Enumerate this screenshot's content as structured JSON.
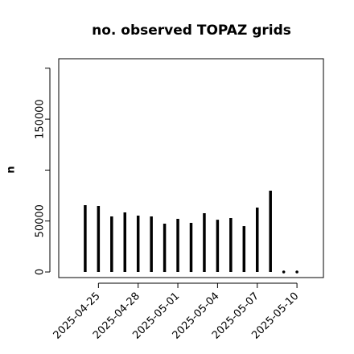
{
  "chart_data": {
    "type": "spike",
    "title": "no. observed TOPAZ grids",
    "ylabel": "n",
    "x": [
      "2025-04-24",
      "2025-04-25",
      "2025-04-26",
      "2025-04-27",
      "2025-04-28",
      "2025-04-29",
      "2025-04-30",
      "2025-05-01",
      "2025-05-02",
      "2025-05-03",
      "2025-05-04",
      "2025-05-05",
      "2025-05-06",
      "2025-05-07",
      "2025-05-08",
      "2025-05-09",
      "2025-05-10"
    ],
    "values": [
      65600,
      64800,
      54500,
      58500,
      55300,
      54500,
      47400,
      52100,
      48200,
      57700,
      51300,
      52900,
      45000,
      63200,
      79800,
      0,
      0
    ],
    "color": "#000000",
    "xlim": [
      "2025-04-22",
      "2025-05-12"
    ],
    "xticks": [
      "2025-04-25",
      "2025-04-28",
      "2025-05-01",
      "2025-05-04",
      "2025-05-07",
      "2025-05-10"
    ],
    "highlight_tick_index": 2,
    "highlight_color": "#228b22",
    "ylim": [
      -5500,
      209300
    ],
    "yticks": [
      0,
      50000,
      150000
    ],
    "yminor_ticks": [
      100000,
      200000
    ]
  }
}
